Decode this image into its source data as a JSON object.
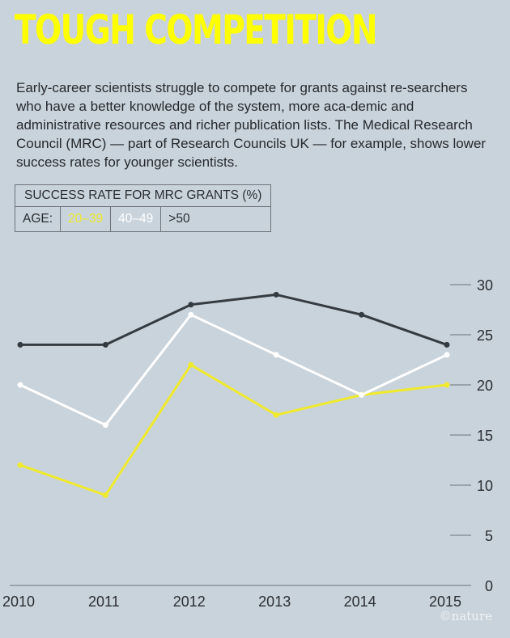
{
  "header": {
    "title": "TOUGH COMPETITION",
    "intro": "Early-career scientists struggle to compete for grants against re-searchers who have a better knowledge of the system, more aca-demic and administrative resources and richer publication lists. The Medical Research Council (MRC) — part of Research Councils UK — for example, shows lower success rates for younger scientists."
  },
  "legend": {
    "heading": "SUCCESS RATE FOR MRC GRANTS (%)",
    "age_label": "AGE:",
    "entries": [
      {
        "label": "20–39",
        "color": "#f0ea2c"
      },
      {
        "label": "40–49",
        "color": "#ffffff"
      },
      {
        "label": ">50",
        "color": "#343b41"
      }
    ]
  },
  "chart_data": {
    "type": "line",
    "x": [
      2010,
      2011,
      2012,
      2013,
      2014,
      2015
    ],
    "x_labels": [
      "2010",
      "2011",
      "2012",
      "2013",
      "2014",
      "2015"
    ],
    "series": [
      {
        "name": "20–39",
        "color": "#f0ea2c",
        "values": [
          12,
          9,
          22,
          17,
          19,
          20
        ]
      },
      {
        "name": "40–49",
        "color": "#ffffff",
        "values": [
          20,
          16,
          27,
          23,
          19,
          23
        ]
      },
      {
        "name": ">50",
        "color": "#343b41",
        "values": [
          24,
          24,
          28,
          29,
          27,
          24
        ]
      }
    ],
    "ylim": [
      0,
      30
    ],
    "yticks": [
      0,
      5,
      10,
      15,
      20,
      25,
      30
    ],
    "y_axis_position": "right",
    "grid": false
  },
  "footer": {
    "credit": "©nature"
  }
}
